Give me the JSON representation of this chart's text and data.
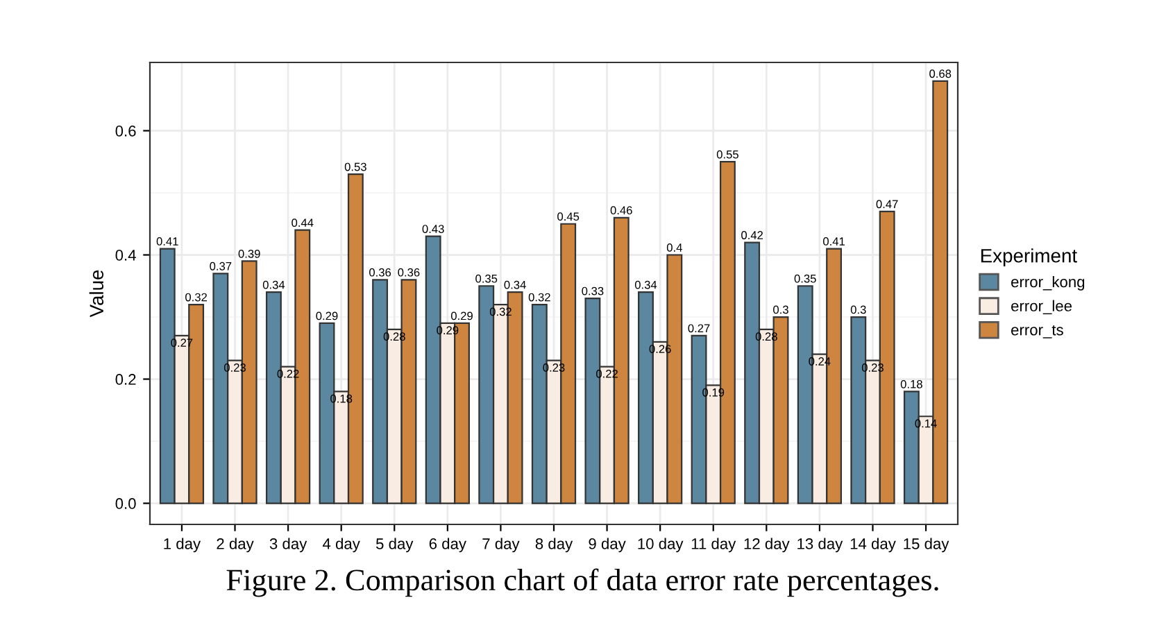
{
  "chart_data": {
    "type": "bar",
    "xlabel": null,
    "ylabel": "Value",
    "legend_title": "Experiment",
    "legend": "right",
    "grid": true,
    "data_labels": true,
    "categories": [
      "1 day",
      "2 day",
      "3 day",
      "4 day",
      "5 day",
      "6 day",
      "7 day",
      "8 day",
      "9 day",
      "10 day",
      "11 day",
      "12 day",
      "13 day",
      "14 day",
      "15 day"
    ],
    "series": [
      {
        "name": "error_kong",
        "color": "#5b87a0",
        "values": [
          0.41,
          0.37,
          0.34,
          0.29,
          0.36,
          0.43,
          0.35,
          0.32,
          0.33,
          0.34,
          0.27,
          0.42,
          0.35,
          0.3,
          0.18
        ]
      },
      {
        "name": "error_lee",
        "color": "#f9ede3",
        "values": [
          0.27,
          0.23,
          0.22,
          0.18,
          0.28,
          0.29,
          0.32,
          0.23,
          0.22,
          0.26,
          0.19,
          0.28,
          0.24,
          0.23,
          0.14
        ]
      },
      {
        "name": "error_ts",
        "color": "#cd853f",
        "values": [
          0.32,
          0.39,
          0.44,
          0.53,
          0.36,
          0.29,
          0.34,
          0.45,
          0.46,
          0.4,
          0.55,
          0.3,
          0.41,
          0.47,
          0.68
        ]
      }
    ],
    "ylim": [
      -0.034,
      0.71
    ],
    "yticks": [
      {
        "value": 0,
        "label": "0.0"
      },
      0.2,
      0.4,
      0.6
    ],
    "annotations": [
      "Figure 2. Comparison chart of data error rate percentages."
    ]
  }
}
